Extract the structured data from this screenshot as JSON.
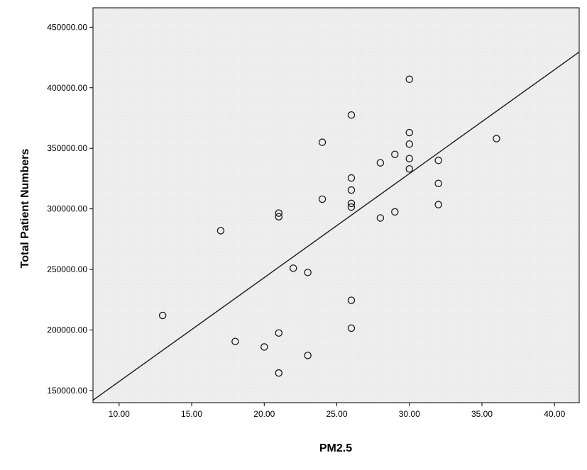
{
  "chart_data": {
    "type": "scatter",
    "title": "",
    "xlabel": "PM2.5",
    "ylabel": "Total Patient Numbers",
    "xlim": [
      8.2,
      41.7
    ],
    "ylim": [
      140000,
      466000
    ],
    "x_ticks": [
      10,
      15,
      20,
      25,
      30,
      35,
      40
    ],
    "y_ticks": [
      150000,
      200000,
      250000,
      300000,
      350000,
      400000,
      450000
    ],
    "x_tick_labels": [
      "10.00",
      "15.00",
      "20.00",
      "25.00",
      "30.00",
      "35.00",
      "40.00"
    ],
    "y_tick_labels": [
      "150000.00",
      "200000.00",
      "250000.00",
      "300000.00",
      "350000.00",
      "400000.00",
      "450000.00"
    ],
    "grid": false,
    "colors": {
      "plot_background": "#ececec",
      "marker_stroke": "#1a1a1a",
      "fit_line": "#1a1a1a"
    },
    "points": [
      {
        "x": 13,
        "y": 212000
      },
      {
        "x": 17,
        "y": 282000
      },
      {
        "x": 18,
        "y": 190500
      },
      {
        "x": 20,
        "y": 186000
      },
      {
        "x": 21,
        "y": 296500
      },
      {
        "x": 21,
        "y": 293500
      },
      {
        "x": 21,
        "y": 197500
      },
      {
        "x": 21,
        "y": 164500
      },
      {
        "x": 22,
        "y": 251000
      },
      {
        "x": 23,
        "y": 247500
      },
      {
        "x": 23,
        "y": 179000
      },
      {
        "x": 24,
        "y": 355000
      },
      {
        "x": 24,
        "y": 308000
      },
      {
        "x": 26,
        "y": 377500
      },
      {
        "x": 26,
        "y": 325500
      },
      {
        "x": 26,
        "y": 315500
      },
      {
        "x": 26,
        "y": 304500
      },
      {
        "x": 26,
        "y": 301500
      },
      {
        "x": 26,
        "y": 224500
      },
      {
        "x": 26,
        "y": 201500
      },
      {
        "x": 28,
        "y": 338000
      },
      {
        "x": 28,
        "y": 292500
      },
      {
        "x": 29,
        "y": 345000
      },
      {
        "x": 29,
        "y": 297500
      },
      {
        "x": 30,
        "y": 407000
      },
      {
        "x": 30,
        "y": 363000
      },
      {
        "x": 30,
        "y": 353500
      },
      {
        "x": 30,
        "y": 341500
      },
      {
        "x": 30,
        "y": 333000
      },
      {
        "x": 32,
        "y": 340000
      },
      {
        "x": 32,
        "y": 321000
      },
      {
        "x": 32,
        "y": 303500
      },
      {
        "x": 36,
        "y": 358000
      }
    ],
    "fit_line": {
      "x": [
        8.2,
        41.7
      ],
      "y": [
        142000,
        429500
      ]
    }
  }
}
